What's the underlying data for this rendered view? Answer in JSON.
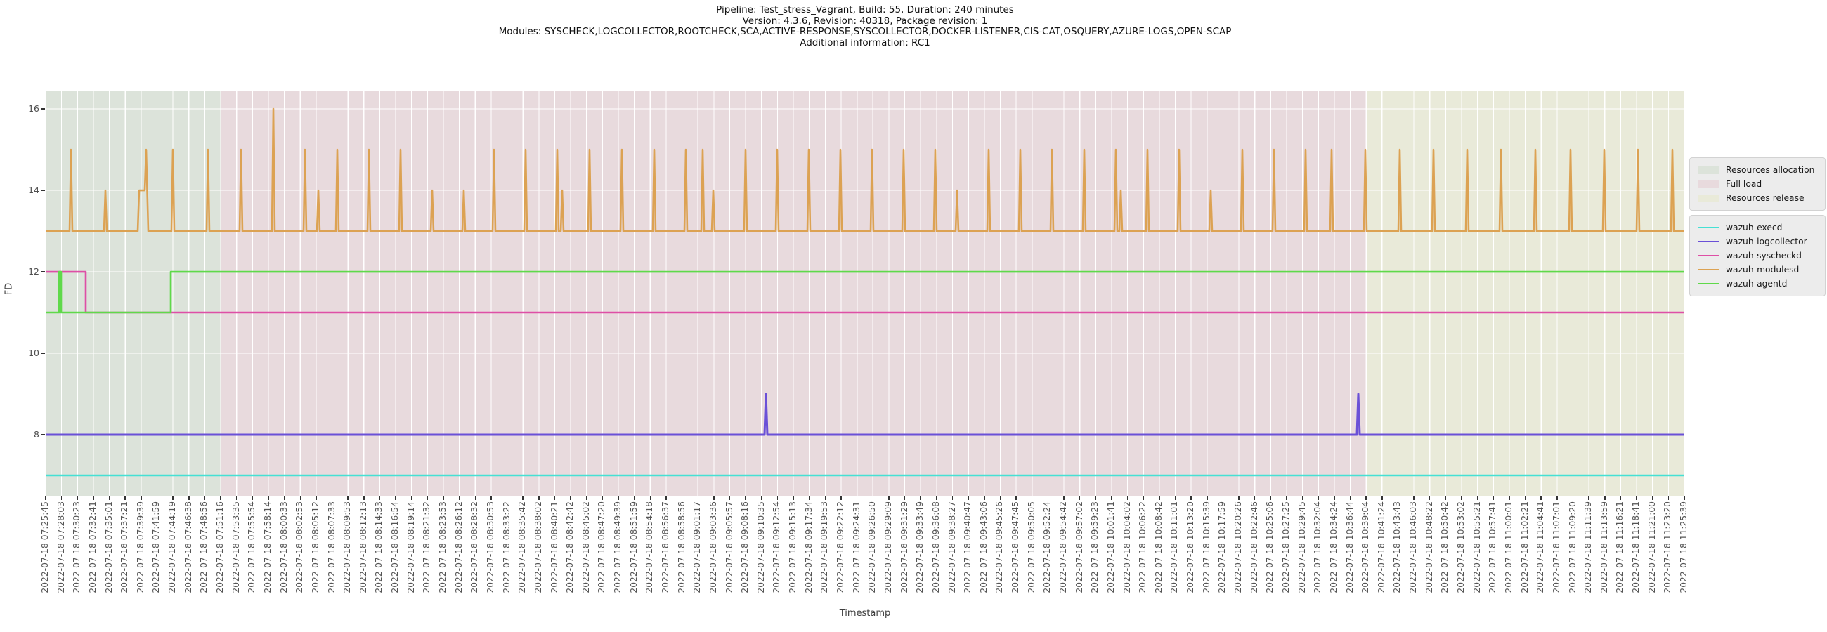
{
  "title_lines": [
    "Pipeline: Test_stress_Vagrant, Build: 55, Duration: 240 minutes",
    "Version: 4.3.6, Revision: 40318, Package revision: 1",
    "Modules: SYSCHECK,LOGCOLLECTOR,ROOTCHECK,SCA,ACTIVE-RESPONSE,SYSCOLLECTOR,DOCKER-LISTENER,CIS-CAT,OSQUERY,AZURE-LOGS,OPEN-SCAP",
    "Additional information: RC1"
  ],
  "chart_data": {
    "type": "line",
    "title": "Pipeline: Test_stress_Vagrant, Build: 55, Duration: 240 minutes",
    "xlabel": "Timestamp",
    "ylabel": "FD",
    "ylim": [
      6.5,
      16.45
    ],
    "y_ticks": [
      8,
      10,
      12,
      14,
      16
    ],
    "grid": true,
    "legend_position": "right",
    "x_tick_labels": [
      "2022-07-18 07:25:45",
      "2022-07-18 07:28:03",
      "2022-07-18 07:30:23",
      "2022-07-18 07:32:41",
      "2022-07-18 07:35:01",
      "2022-07-18 07:37:21",
      "2022-07-18 07:39:39",
      "2022-07-18 07:41:59",
      "2022-07-18 07:44:19",
      "2022-07-18 07:46:38",
      "2022-07-18 07:48:56",
      "2022-07-18 07:51:16",
      "2022-07-18 07:53:35",
      "2022-07-18 07:55:54",
      "2022-07-18 07:58:14",
      "2022-07-18 08:00:33",
      "2022-07-18 08:02:53",
      "2022-07-18 08:05:12",
      "2022-07-18 08:07:33",
      "2022-07-18 08:09:53",
      "2022-07-18 08:12:13",
      "2022-07-18 08:14:33",
      "2022-07-18 08:16:54",
      "2022-07-18 08:19:14",
      "2022-07-18 08:21:32",
      "2022-07-18 08:23:53",
      "2022-07-18 08:26:12",
      "2022-07-18 08:28:32",
      "2022-07-18 08:30:53",
      "2022-07-18 08:33:22",
      "2022-07-18 08:35:42",
      "2022-07-18 08:38:02",
      "2022-07-18 08:40:21",
      "2022-07-18 08:42:42",
      "2022-07-18 08:45:02",
      "2022-07-18 08:47:20",
      "2022-07-18 08:49:39",
      "2022-07-18 08:51:59",
      "2022-07-18 08:54:18",
      "2022-07-18 08:56:37",
      "2022-07-18 08:58:56",
      "2022-07-18 09:01:17",
      "2022-07-18 09:03:36",
      "2022-07-18 09:05:57",
      "2022-07-18 09:08:16",
      "2022-07-18 09:10:35",
      "2022-07-18 09:12:54",
      "2022-07-18 09:15:13",
      "2022-07-18 09:17:34",
      "2022-07-18 09:19:53",
      "2022-07-18 09:22:12",
      "2022-07-18 09:24:31",
      "2022-07-18 09:26:50",
      "2022-07-18 09:29:09",
      "2022-07-18 09:31:29",
      "2022-07-18 09:33:49",
      "2022-07-18 09:36:08",
      "2022-07-18 09:38:27",
      "2022-07-18 09:40:47",
      "2022-07-18 09:43:06",
      "2022-07-18 09:45:26",
      "2022-07-18 09:47:45",
      "2022-07-18 09:50:05",
      "2022-07-18 09:52:24",
      "2022-07-18 09:54:42",
      "2022-07-18 09:57:02",
      "2022-07-18 09:59:23",
      "2022-07-18 10:01:41",
      "2022-07-18 10:04:02",
      "2022-07-18 10:06:22",
      "2022-07-18 10:08:42",
      "2022-07-18 10:11:01",
      "2022-07-18 10:13:20",
      "2022-07-18 10:15:39",
      "2022-07-18 10:17:59",
      "2022-07-18 10:20:26",
      "2022-07-18 10:22:46",
      "2022-07-18 10:25:06",
      "2022-07-18 10:27:25",
      "2022-07-18 10:29:45",
      "2022-07-18 10:32:04",
      "2022-07-18 10:34:24",
      "2022-07-18 10:36:44",
      "2022-07-18 10:39:04",
      "2022-07-18 10:41:24",
      "2022-07-18 10:43:43",
      "2022-07-18 10:46:03",
      "2022-07-18 10:48:22",
      "2022-07-18 10:50:42",
      "2022-07-18 10:53:02",
      "2022-07-18 10:55:21",
      "2022-07-18 10:57:41",
      "2022-07-18 11:00:01",
      "2022-07-18 11:02:21",
      "2022-07-18 11:04:41",
      "2022-07-18 11:07:01",
      "2022-07-18 11:09:20",
      "2022-07-18 11:11:39",
      "2022-07-18 11:13:59",
      "2022-07-18 11:16:21",
      "2022-07-18 11:18:41",
      "2022-07-18 11:21:00",
      "2022-07-18 11:23:20",
      "2022-07-18 11:25:39"
    ],
    "regions": [
      {
        "label": "Resources allocation",
        "color": "#dce3da",
        "start_tick": 0,
        "end_tick": 11
      },
      {
        "label": "Full load",
        "color": "#e8dadd",
        "start_tick": 11,
        "end_tick": 83
      },
      {
        "label": "Resources release",
        "color": "#e9ead9",
        "start_tick": 83,
        "end_tick": 103
      }
    ],
    "series": [
      {
        "name": "wazuh-execd",
        "color": "#45e0d4",
        "width": 2.6,
        "points": [
          [
            0,
            7
          ],
          [
            2332,
            7
          ]
        ]
      },
      {
        "name": "wazuh-logcollector",
        "color": "#6a50d7",
        "width": 3,
        "points": [
          [
            0,
            8
          ],
          [
            1023,
            8
          ],
          [
            1025,
            9
          ],
          [
            1027,
            8
          ],
          [
            1866,
            8
          ],
          [
            1868,
            9
          ],
          [
            1870,
            8
          ],
          [
            2332,
            8
          ]
        ]
      },
      {
        "name": "wazuh-syscheckd",
        "color": "#de4fa6",
        "width": 2.6,
        "points": [
          [
            0,
            12
          ],
          [
            57,
            12
          ],
          [
            57,
            11
          ],
          [
            2332,
            11
          ]
        ]
      },
      {
        "name": "wazuh-modulesd",
        "color": "#dca253",
        "width": 2.6,
        "points": [
          [
            0,
            13
          ],
          [
            34,
            13
          ],
          [
            36,
            15
          ],
          [
            38,
            13
          ],
          [
            83,
            13
          ],
          [
            85,
            14
          ],
          [
            87,
            13
          ],
          [
            131,
            13
          ],
          [
            133,
            14
          ],
          [
            141,
            14
          ],
          [
            143,
            15
          ],
          [
            146,
            13
          ],
          [
            179,
            13
          ],
          [
            181,
            15
          ],
          [
            183,
            13
          ],
          [
            229,
            13
          ],
          [
            231,
            15
          ],
          [
            233,
            13
          ],
          [
            276,
            13
          ],
          [
            278,
            15
          ],
          [
            280,
            13
          ],
          [
            322,
            13
          ],
          [
            324,
            16
          ],
          [
            326,
            13
          ],
          [
            367,
            13
          ],
          [
            369,
            15
          ],
          [
            371,
            13
          ],
          [
            386,
            13
          ],
          [
            388,
            14
          ],
          [
            390,
            13
          ],
          [
            413,
            13
          ],
          [
            415,
            15
          ],
          [
            417,
            13
          ],
          [
            458,
            13
          ],
          [
            460,
            15
          ],
          [
            462,
            13
          ],
          [
            503,
            13
          ],
          [
            505,
            15
          ],
          [
            507,
            13
          ],
          [
            548,
            13
          ],
          [
            550,
            14
          ],
          [
            552,
            13
          ],
          [
            593,
            13
          ],
          [
            595,
            14
          ],
          [
            597,
            13
          ],
          [
            636,
            13
          ],
          [
            638,
            15
          ],
          [
            640,
            13
          ],
          [
            681,
            13
          ],
          [
            683,
            15
          ],
          [
            685,
            13
          ],
          [
            726,
            13
          ],
          [
            728,
            15
          ],
          [
            730,
            13
          ],
          [
            733,
            13
          ],
          [
            735,
            14
          ],
          [
            737,
            13
          ],
          [
            772,
            13
          ],
          [
            774,
            15
          ],
          [
            776,
            13
          ],
          [
            818,
            13
          ],
          [
            820,
            15
          ],
          [
            822,
            13
          ],
          [
            864,
            13
          ],
          [
            866,
            15
          ],
          [
            868,
            13
          ],
          [
            909,
            13
          ],
          [
            911,
            15
          ],
          [
            913,
            13
          ],
          [
            933,
            13
          ],
          [
            935,
            15
          ],
          [
            937,
            13
          ],
          [
            948,
            13
          ],
          [
            950,
            14
          ],
          [
            952,
            13
          ],
          [
            994,
            13
          ],
          [
            996,
            15
          ],
          [
            998,
            13
          ],
          [
            1039,
            13
          ],
          [
            1041,
            15
          ],
          [
            1043,
            13
          ],
          [
            1084,
            13
          ],
          [
            1086,
            15
          ],
          [
            1088,
            13
          ],
          [
            1129,
            13
          ],
          [
            1131,
            15
          ],
          [
            1133,
            13
          ],
          [
            1174,
            13
          ],
          [
            1176,
            15
          ],
          [
            1178,
            13
          ],
          [
            1219,
            13
          ],
          [
            1221,
            15
          ],
          [
            1223,
            13
          ],
          [
            1264,
            13
          ],
          [
            1266,
            15
          ],
          [
            1268,
            13
          ],
          [
            1295,
            13
          ],
          [
            1297,
            14
          ],
          [
            1299,
            13
          ],
          [
            1340,
            13
          ],
          [
            1342,
            15
          ],
          [
            1344,
            13
          ],
          [
            1385,
            13
          ],
          [
            1387,
            15
          ],
          [
            1389,
            13
          ],
          [
            1430,
            13
          ],
          [
            1432,
            15
          ],
          [
            1434,
            13
          ],
          [
            1476,
            13
          ],
          [
            1478,
            15
          ],
          [
            1480,
            13
          ],
          [
            1521,
            13
          ],
          [
            1523,
            15
          ],
          [
            1525,
            13
          ],
          [
            1528,
            13
          ],
          [
            1530,
            14
          ],
          [
            1532,
            13
          ],
          [
            1566,
            13
          ],
          [
            1568,
            15
          ],
          [
            1570,
            13
          ],
          [
            1611,
            13
          ],
          [
            1613,
            15
          ],
          [
            1615,
            13
          ],
          [
            1656,
            13
          ],
          [
            1658,
            14
          ],
          [
            1660,
            13
          ],
          [
            1701,
            13
          ],
          [
            1703,
            15
          ],
          [
            1705,
            13
          ],
          [
            1746,
            13
          ],
          [
            1748,
            15
          ],
          [
            1750,
            13
          ],
          [
            1791,
            13
          ],
          [
            1793,
            15
          ],
          [
            1795,
            13
          ],
          [
            1828,
            13
          ],
          [
            1830,
            15
          ],
          [
            1832,
            13
          ],
          [
            1876,
            13
          ],
          [
            1878,
            15
          ],
          [
            1880,
            13
          ],
          [
            1925,
            13
          ],
          [
            1927,
            15
          ],
          [
            1929,
            13
          ],
          [
            1973,
            13
          ],
          [
            1975,
            15
          ],
          [
            1977,
            13
          ],
          [
            2021,
            13
          ],
          [
            2023,
            15
          ],
          [
            2025,
            13
          ],
          [
            2069,
            13
          ],
          [
            2071,
            15
          ],
          [
            2073,
            13
          ],
          [
            2118,
            13
          ],
          [
            2120,
            15
          ],
          [
            2122,
            13
          ],
          [
            2168,
            13
          ],
          [
            2170,
            15
          ],
          [
            2172,
            13
          ],
          [
            2216,
            13
          ],
          [
            2218,
            15
          ],
          [
            2220,
            13
          ],
          [
            2264,
            13
          ],
          [
            2266,
            15
          ],
          [
            2268,
            13
          ],
          [
            2313,
            13
          ],
          [
            2315,
            15
          ],
          [
            2317,
            13
          ],
          [
            2332,
            13
          ]
        ]
      },
      {
        "name": "wazuh-agentd",
        "color": "#5fd94a",
        "width": 2.6,
        "points": [
          [
            0,
            11
          ],
          [
            19,
            11
          ],
          [
            19,
            12
          ],
          [
            22,
            12
          ],
          [
            22,
            11
          ],
          [
            178,
            11
          ],
          [
            178,
            12
          ],
          [
            2332,
            12
          ]
        ]
      }
    ],
    "grid_color": "#ffffff"
  }
}
